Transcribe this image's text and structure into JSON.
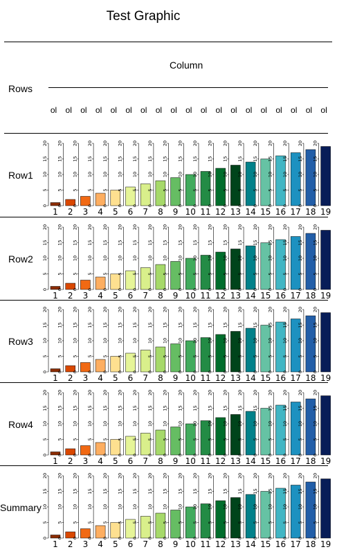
{
  "title": "Test Graphic",
  "column_header": "Column",
  "rows_header": "Rows",
  "column_names": [
    "ol",
    "ol",
    "ol",
    "ol",
    "ol",
    "ol",
    "ol",
    "ol",
    "ol",
    "ol",
    "ol",
    "ol",
    "ol",
    "ol",
    "ol",
    "ol",
    "ol",
    "ol",
    "ol"
  ],
  "palette": [
    "#8c2d04",
    "#d94801",
    "#f16913",
    "#fdae61",
    "#fee090",
    "#e6f598",
    "#d9ef8b",
    "#a6d96a",
    "#66bd63",
    "#41ab5d",
    "#238b45",
    "#006d2c",
    "#00441b",
    "#02818a",
    "#66c2a4",
    "#41b6c4",
    "#1d91c0",
    "#225ea8",
    "#253494"
  ],
  "chart_data": {
    "type": "bar",
    "panels": [
      "Row1",
      "Row2",
      "Row3",
      "Row4",
      "Summary"
    ],
    "categories": [
      "1",
      "2",
      "3",
      "4",
      "5",
      "6",
      "7",
      "8",
      "9",
      "10",
      "11",
      "12",
      "13",
      "14",
      "15",
      "16",
      "17",
      "18",
      "19"
    ],
    "values": [
      1,
      2,
      3,
      4,
      5,
      6,
      7,
      8,
      9,
      10,
      11,
      12,
      13,
      14,
      15,
      16,
      17,
      18,
      19
    ],
    "ylim": [
      0,
      20
    ],
    "yticks": [
      0,
      5,
      10,
      15,
      20
    ],
    "bar_colors": [
      "#8c2d04",
      "#d94801",
      "#f16913",
      "#fdae61",
      "#fee090",
      "#e6f598",
      "#d9ef8b",
      "#a6d96a",
      "#66bd63",
      "#41ab5d",
      "#238b45",
      "#006d2c",
      "#00441b",
      "#02818a",
      "#66c2a4",
      "#41b6c4",
      "#1d91c0",
      "#225ea8",
      "#081d58"
    ]
  }
}
